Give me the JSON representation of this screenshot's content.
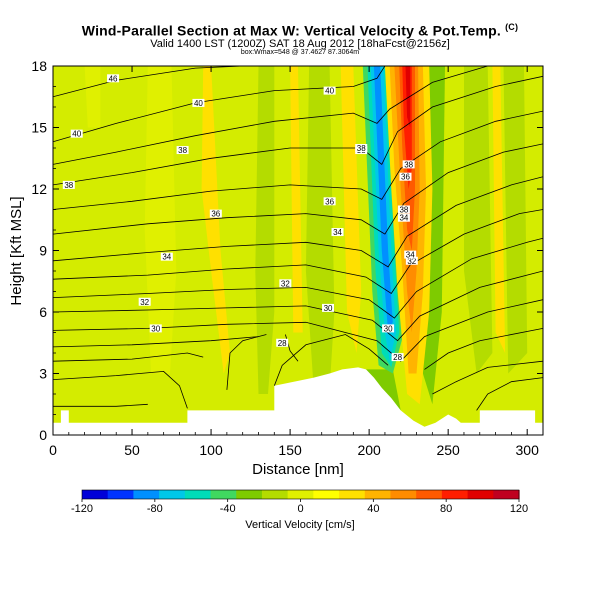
{
  "header": {
    "title": "Wind-Parallel Section at Max W: Vertical Velocity & Pot.Temp.",
    "title_mark": "(C)",
    "subtitle": "Valid 1400 LST (1200Z) SAT 18 Aug 2012",
    "subtitle_suffix": "[18haFcst@2156z]",
    "small_note": "box:Wmax=548 @ 37.4627 87.3064m"
  },
  "chart_data": {
    "type": "heatmap",
    "title": "Wind-Parallel Section at Max W: Vertical Velocity & Pot.Temp.",
    "xlabel": "Distance [nm]",
    "ylabel": "Height [Kft MSL]",
    "xlim": [
      0,
      310
    ],
    "ylim": [
      0,
      18
    ],
    "x_ticks": [
      "0",
      "50",
      "100",
      "150",
      "200",
      "250",
      "300"
    ],
    "y_ticks": [
      "0",
      "3",
      "6",
      "9",
      "12",
      "15",
      "18"
    ],
    "colorbar": {
      "label": "Vertical Velocity [cm/s]",
      "range": [
        -120,
        120
      ],
      "ticks": [
        "-120",
        "-80",
        "-40",
        "0",
        "40",
        "80",
        "120"
      ],
      "colors": [
        "#0000d8",
        "#0033ff",
        "#0090ff",
        "#00c8e8",
        "#00dcb8",
        "#40d860",
        "#7ecb00",
        "#b4dc00",
        "#e0f000",
        "#ffff00",
        "#ffe000",
        "#ffb400",
        "#ff8c00",
        "#ff5a00",
        "#ff1e00",
        "#e00000",
        "#c00020"
      ]
    },
    "theta_contours": {
      "levels_k": [
        28,
        30,
        32,
        34,
        36,
        38,
        40
      ],
      "labels": [
        "46",
        "40",
        "40",
        "38",
        "38",
        "40",
        "38",
        "36",
        "36",
        "34",
        "34",
        "32",
        "32",
        "30",
        "30",
        "28",
        "38",
        "36",
        "34",
        "32",
        "30",
        "28",
        "38",
        "38",
        "34"
      ]
    },
    "terrain_profile": {
      "x_nm": [
        0,
        5,
        5,
        10,
        10,
        85,
        85,
        140,
        140,
        165,
        175,
        183,
        193,
        198,
        203,
        208,
        214,
        220,
        228,
        235,
        242,
        250,
        255,
        258,
        270,
        270,
        305,
        305,
        310
      ],
      "height_kft": [
        0.6,
        0.6,
        1.2,
        1.2,
        0.6,
        0.6,
        1.2,
        1.2,
        2.4,
        2.8,
        3.0,
        3.2,
        3.3,
        3.2,
        2.8,
        2.3,
        1.8,
        1.2,
        0.7,
        0.4,
        0.6,
        1.0,
        0.8,
        0.6,
        0.6,
        1.2,
        1.2,
        0.6,
        0.6
      ]
    },
    "updraft_max_cm_s": 120,
    "downdraft_max_cm_s": -80
  }
}
